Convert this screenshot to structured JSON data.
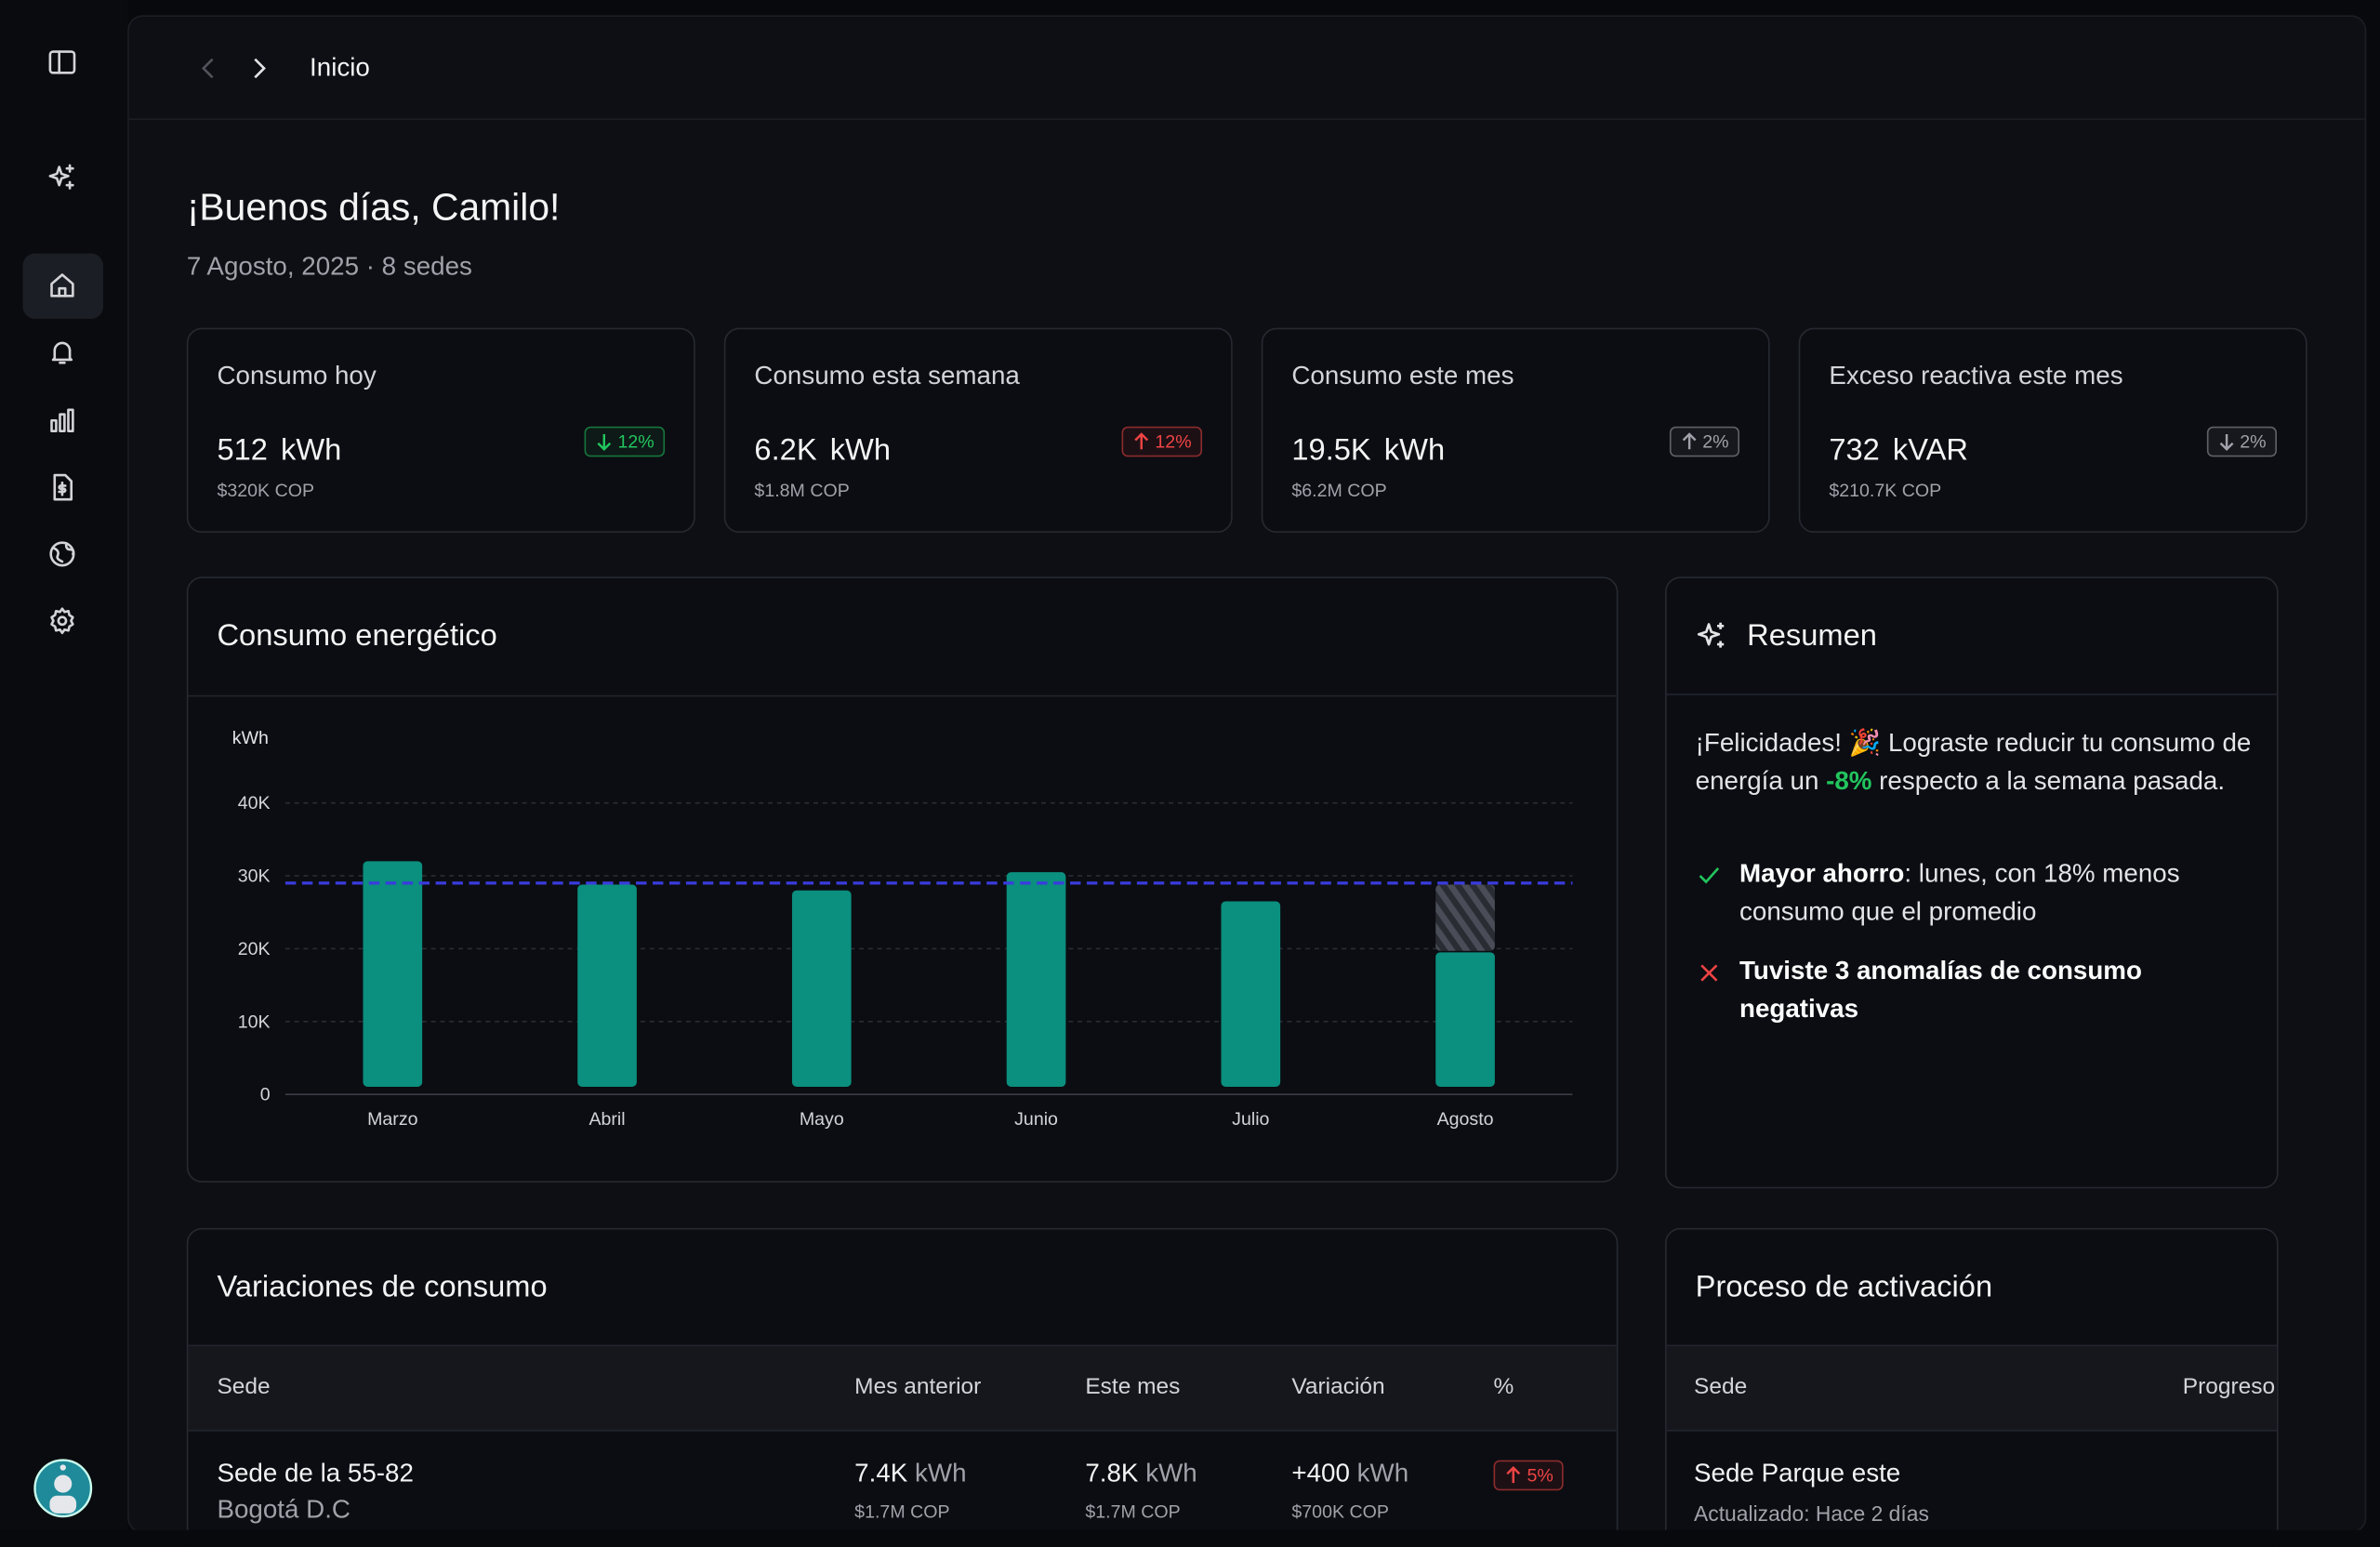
{
  "header": {
    "breadcrumb": "Inicio"
  },
  "greeting": {
    "title": "¡Buenos días, Camilo!",
    "subtitle": "7 Agosto, 2025 · 8 sedes"
  },
  "cards": [
    {
      "title": "Consumo hoy",
      "value": "512",
      "unit": "kWh",
      "cost": "$320K COP",
      "change": "12%",
      "trend": "down",
      "color": "#22c55e"
    },
    {
      "title": "Consumo esta semana",
      "value": "6.2K",
      "unit": "kWh",
      "cost": "$1.8M COP",
      "change": "12%",
      "trend": "up",
      "color": "#ef4444"
    },
    {
      "title": "Consumo este mes",
      "value": "19.5K",
      "unit": "kWh",
      "cost": "$6.2M COP",
      "change": "2%",
      "trend": "up",
      "color": "#a1a1aa"
    },
    {
      "title": "Exceso reactiva este mes",
      "value": "732",
      "unit": "kVAR",
      "cost": "$210.7K COP",
      "change": "2%",
      "trend": "down",
      "color": "#a1a1aa"
    }
  ],
  "chart_data": {
    "type": "bar",
    "title": "Consumo energético",
    "ylabel": "kWh",
    "categories": [
      "Marzo",
      "Abril",
      "Mayo",
      "Junio",
      "Julio",
      "Agosto"
    ],
    "stacked": true,
    "series": [
      {
        "color": "#0b8f7e",
        "values": [
          32000,
          28800,
          28000,
          30500,
          26500,
          19500
        ]
      },
      {
        "color": "#3a3d47",
        "pattern": "hatch",
        "values": [
          null,
          null,
          null,
          null,
          null,
          9300
        ]
      }
    ],
    "reference_line": {
      "value": 29000,
      "color": "#3b3be0",
      "dashed": true
    },
    "ylim": [
      0,
      40000
    ],
    "yticks": [
      0,
      {
        "value": 10000,
        "label": "10K"
      },
      {
        "value": 20000,
        "label": "20K"
      },
      {
        "value": 30000,
        "label": "30K"
      },
      {
        "value": 40000,
        "label": "40K"
      }
    ],
    "grid": true
  },
  "summary": {
    "title": "Resumen",
    "intro_before": "¡Felicidades! 🎉 Lograste reducir tu consumo de energía un ",
    "intro_highlight": "-8%",
    "intro_after": " respecto a la semana pasada.",
    "items": [
      {
        "bold": "Mayor ahorro",
        "text": ": lunes, con 18% menos consumo que el promedio",
        "kind": "check"
      },
      {
        "bold": "Tuviste 3 anomalías de consumo negativas",
        "kind": "cross"
      }
    ]
  },
  "variations": {
    "title": "Variaciones de consumo",
    "columns": [
      "Sede",
      "Mes anterior",
      "Este mes",
      "Variación",
      "%"
    ],
    "rows": [
      {
        "site": "Sede de la 55-82",
        "city": "Bogotá D.C",
        "previous": {
          "value": "7.4K",
          "unit": "kWh",
          "cost": "$1.7M COP"
        },
        "current": {
          "value": "7.8K",
          "unit": "kWh",
          "cost": "$1.7M COP"
        },
        "variation": {
          "value": "+400",
          "unit": "kWh",
          "cost": "$700K COP"
        },
        "percent": {
          "value": "5%",
          "trend": "up",
          "color": "#ef4444"
        }
      }
    ]
  },
  "activation": {
    "title": "Proceso de activación",
    "columns": [
      "Sede",
      "Progreso"
    ],
    "rows": [
      {
        "site": "Sede Parque este",
        "updated": "Actualizado: Hace 2 días"
      }
    ]
  }
}
